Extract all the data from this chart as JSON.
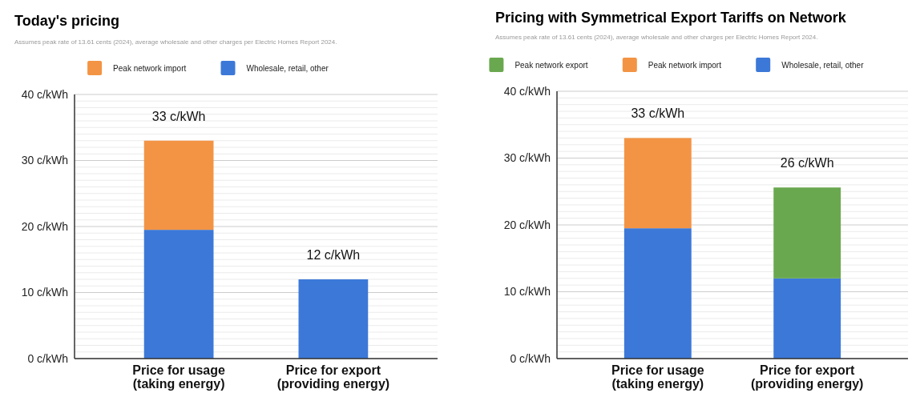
{
  "chart_data": [
    {
      "type": "bar",
      "stacked": true,
      "title": "Today's pricing",
      "subtitle": "Assumes peak rate of 13.61 cents (2024), average wholesale and other charges per Electric Homes Report 2024.",
      "categories": [
        "Price for usage (taking energy)",
        "Price for export (providing energy)"
      ],
      "series": [
        {
          "name": "Wholesale, retail, other",
          "color": "#3c78d8",
          "values": [
            19.5,
            12
          ]
        },
        {
          "name": "Peak network import",
          "color": "#f39444",
          "values": [
            13.5,
            null
          ]
        }
      ],
      "totals": [
        "33 c/kWh",
        "12 c/kWh"
      ],
      "legend": "top",
      "grid": true,
      "ylim": [
        0,
        40
      ],
      "yticks": [
        {
          "value": 0,
          "label": "0 c/kWh"
        },
        {
          "value": 1,
          "label": null
        },
        {
          "value": 2,
          "label": null
        },
        {
          "value": 3,
          "label": null
        },
        {
          "value": 4,
          "label": null
        },
        {
          "value": 5,
          "label": null
        },
        {
          "value": 6,
          "label": null
        },
        {
          "value": 7,
          "label": null
        },
        {
          "value": 8,
          "label": null
        },
        {
          "value": 9,
          "label": null
        },
        {
          "value": 10,
          "label": "10 c/kWh"
        },
        {
          "value": 11,
          "label": null
        },
        {
          "value": 12,
          "label": null
        },
        {
          "value": 13,
          "label": null
        },
        {
          "value": 14,
          "label": null
        },
        {
          "value": 15,
          "label": null
        },
        {
          "value": 16,
          "label": null
        },
        {
          "value": 17,
          "label": null
        },
        {
          "value": 18,
          "label": null
        },
        {
          "value": 19,
          "label": null
        },
        {
          "value": 20,
          "label": "20 c/kWh"
        },
        {
          "value": 21,
          "label": null
        },
        {
          "value": 22,
          "label": null
        },
        {
          "value": 23,
          "label": null
        },
        {
          "value": 24,
          "label": null
        },
        {
          "value": 25,
          "label": null
        },
        {
          "value": 26,
          "label": null
        },
        {
          "value": 27,
          "label": null
        },
        {
          "value": 28,
          "label": null
        },
        {
          "value": 29,
          "label": null
        },
        {
          "value": 30,
          "label": "30 c/kWh"
        },
        {
          "value": 31,
          "label": null
        },
        {
          "value": 32,
          "label": null
        },
        {
          "value": 33,
          "label": null
        },
        {
          "value": 34,
          "label": null
        },
        {
          "value": 35,
          "label": null
        },
        {
          "value": 36,
          "label": null
        },
        {
          "value": 37,
          "label": null
        },
        {
          "value": 38,
          "label": null
        },
        {
          "value": 39,
          "label": null
        },
        {
          "value": 40,
          "label": "40 c/kWh"
        }
      ]
    },
    {
      "type": "bar",
      "stacked": true,
      "title": "Pricing with Symmetrical Export Tariffs on Network",
      "subtitle": "Assumes peak rate of 13.61 cents (2024), average wholesale and other charges per Electric Homes Report 2024.",
      "categories": [
        "Price for usage (taking energy)",
        "Price for export (providing energy)"
      ],
      "series": [
        {
          "name": "Wholesale, retail, other",
          "color": "#3c78d8",
          "values": [
            19.5,
            12
          ]
        },
        {
          "name": "Peak network import",
          "color": "#f39444",
          "values": [
            13.5,
            null
          ]
        },
        {
          "name": "Peak network export",
          "color": "#6aa84f",
          "values": [
            null,
            13.6
          ]
        }
      ],
      "totals": [
        "33 c/kWh",
        "26 c/kWh"
      ],
      "legend": "top",
      "grid": true,
      "ylim": [
        0,
        40
      ],
      "yticks": [
        {
          "value": 0,
          "label": "0 c/kWh"
        },
        {
          "value": 1,
          "label": null
        },
        {
          "value": 2,
          "label": null
        },
        {
          "value": 3,
          "label": null
        },
        {
          "value": 4,
          "label": null
        },
        {
          "value": 5,
          "label": null
        },
        {
          "value": 6,
          "label": null
        },
        {
          "value": 7,
          "label": null
        },
        {
          "value": 8,
          "label": null
        },
        {
          "value": 9,
          "label": null
        },
        {
          "value": 10,
          "label": "10 c/kWh"
        },
        {
          "value": 11,
          "label": null
        },
        {
          "value": 12,
          "label": null
        },
        {
          "value": 13,
          "label": null
        },
        {
          "value": 14,
          "label": null
        },
        {
          "value": 15,
          "label": null
        },
        {
          "value": 16,
          "label": null
        },
        {
          "value": 17,
          "label": null
        },
        {
          "value": 18,
          "label": null
        },
        {
          "value": 19,
          "label": null
        },
        {
          "value": 20,
          "label": "20 c/kWh"
        },
        {
          "value": 21,
          "label": null
        },
        {
          "value": 22,
          "label": null
        },
        {
          "value": 23,
          "label": null
        },
        {
          "value": 24,
          "label": null
        },
        {
          "value": 25,
          "label": null
        },
        {
          "value": 26,
          "label": null
        },
        {
          "value": 27,
          "label": null
        },
        {
          "value": 28,
          "label": null
        },
        {
          "value": 29,
          "label": null
        },
        {
          "value": 30,
          "label": "30 c/kWh"
        },
        {
          "value": 31,
          "label": null
        },
        {
          "value": 32,
          "label": null
        },
        {
          "value": 33,
          "label": null
        },
        {
          "value": 34,
          "label": null
        },
        {
          "value": 35,
          "label": null
        },
        {
          "value": 36,
          "label": null
        },
        {
          "value": 37,
          "label": null
        },
        {
          "value": 38,
          "label": null
        },
        {
          "value": 39,
          "label": null
        },
        {
          "value": 40,
          "label": "40 c/kWh"
        }
      ]
    }
  ]
}
